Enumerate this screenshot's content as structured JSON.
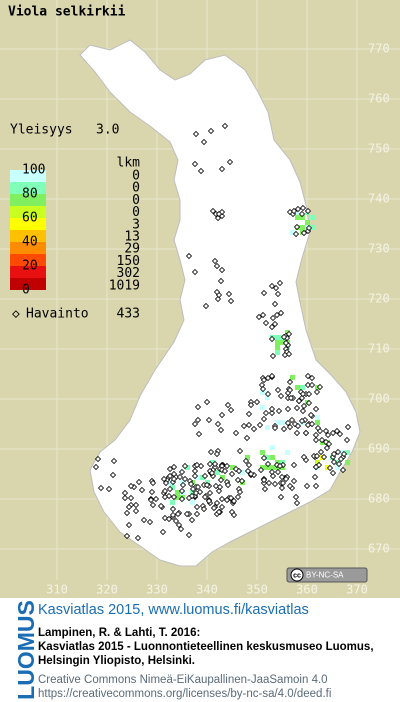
{
  "title": "Viola selkirkii",
  "frequency": {
    "label": "Yleisyys",
    "value": "3.0"
  },
  "legend": {
    "scale_labels": [
      100,
      80,
      60,
      40,
      20,
      0
    ],
    "colors": [
      "#c00000",
      "#e81010",
      "#ff4a00",
      "#ff8c00",
      "#ffc000",
      "#ffff00",
      "#c8ff20",
      "#80f060",
      "#80ffb8",
      "#c8ffff"
    ],
    "count_header": "lkm",
    "counts": [
      0,
      0,
      0,
      0,
      3,
      13,
      29,
      150,
      302,
      1019
    ],
    "observations": {
      "label": "Havainto",
      "value": 433
    }
  },
  "map": {
    "y_ticks": [
      770,
      760,
      750,
      740,
      730,
      720,
      710,
      700,
      690,
      680,
      670
    ],
    "x_ticks": [
      310,
      320,
      330,
      340,
      350,
      360,
      370
    ]
  },
  "license_badge": {
    "icon": "cc",
    "text": "BY-NC-SA"
  },
  "footer": {
    "brand": "LUOMUS",
    "headline": "Kasviatlas 2015, www.luomus.fi/kasviatlas",
    "citation": [
      "Lampinen, R. & Lahti, T. 2016:",
      "Kasviatlas 2015 - Luonnontieteellinen keskusmuseo Luomus,",
      "Helsingin Yliopisto, Helsinki."
    ],
    "license": [
      "Creative Commons Nimeä-EiKaupallinen-JaaSamoin 4.0",
      "https://creativecommons.org/licenses/by-nc-sa/4.0/deed.fi"
    ]
  }
}
